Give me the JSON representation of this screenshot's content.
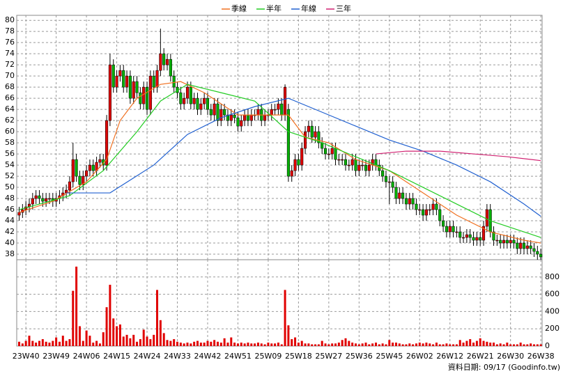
{
  "chart_data": [
    {
      "type": "candlestick",
      "categories": [
        null,
        null,
        "23W40",
        null,
        null,
        null,
        null,
        null,
        null,
        null,
        null,
        "23W49",
        null,
        null,
        null,
        null,
        null,
        null,
        null,
        null,
        "24W06",
        null,
        null,
        null,
        null,
        null,
        null,
        null,
        null,
        "24W15",
        null,
        null,
        null,
        null,
        null,
        null,
        null,
        null,
        "24W24",
        null,
        null,
        null,
        null,
        null,
        null,
        null,
        null,
        "24W33",
        null,
        null,
        null,
        null,
        null,
        null,
        null,
        null,
        "24W42",
        null,
        null,
        null,
        null,
        null,
        null,
        null,
        null,
        "24W51",
        null,
        null,
        null,
        null,
        null,
        null,
        null,
        null,
        "25W09",
        null,
        null,
        null,
        null,
        null,
        null,
        null,
        null,
        "25W18",
        null,
        null,
        null,
        null,
        null,
        null,
        null,
        null,
        "25W27",
        null,
        null,
        null,
        null,
        null,
        null,
        null,
        null,
        "25W36",
        null,
        null,
        null,
        null,
        null,
        null,
        null,
        null,
        "25W45",
        null,
        null,
        null,
        null,
        null,
        null,
        null,
        null,
        "26W02",
        null,
        null,
        null,
        null,
        null,
        null,
        null,
        null,
        "26W12",
        null,
        null,
        null,
        null,
        null,
        null,
        null,
        null,
        "26W21",
        null,
        null,
        null,
        null,
        null,
        null,
        null,
        null,
        "26W30",
        null,
        null,
        null,
        null,
        null,
        null,
        null,
        null,
        "26W38"
      ],
      "open": [
        45,
        45.5,
        46,
        46.5,
        47,
        48,
        48.5,
        48,
        47.5,
        48,
        48,
        47.5,
        48,
        48.5,
        49,
        49.5,
        51,
        55,
        52,
        50.5,
        52,
        53,
        54,
        53,
        54.5,
        55,
        54,
        62,
        72,
        68,
        70,
        71,
        68,
        70,
        66,
        69,
        67,
        65,
        68,
        64,
        70,
        68,
        71,
        74,
        72,
        73,
        70,
        68,
        67,
        65,
        66,
        68,
        65,
        66,
        64,
        65,
        66,
        64,
        63,
        65,
        62,
        64,
        63,
        62,
        63,
        62.5,
        61,
        62,
        63,
        62,
        63,
        63,
        64,
        62,
        63,
        63,
        64,
        64,
        65,
        63,
        64,
        52,
        53,
        55,
        54,
        57,
        60,
        61,
        59,
        60,
        58,
        57,
        56,
        56,
        57,
        55,
        55,
        55,
        54,
        54,
        55,
        53,
        54,
        54,
        53,
        54,
        55,
        54,
        53,
        52,
        51,
        51,
        50,
        48,
        49,
        48,
        47,
        48,
        47,
        46,
        46,
        45,
        46,
        46,
        47,
        46,
        44,
        43,
        42,
        43,
        42,
        42,
        41,
        41,
        41.5,
        41,
        40.5,
        41,
        40.5,
        43,
        46,
        42,
        40.5,
        40.5,
        40,
        40.5,
        40,
        40.5,
        40,
        39,
        40,
        39,
        39.5,
        39,
        38.5,
        38
      ],
      "high": [
        46.5,
        47,
        47.5,
        48,
        49,
        49.5,
        49.5,
        49,
        49,
        49,
        49,
        49,
        49.5,
        50,
        50.5,
        52,
        58,
        56,
        53,
        53,
        54,
        55,
        55,
        55.5,
        56,
        56,
        63,
        74,
        73,
        71,
        72,
        72,
        71,
        71,
        70,
        70,
        68,
        69,
        69,
        71,
        71,
        72,
        78.5,
        75,
        74,
        74,
        71,
        69,
        68,
        67,
        69,
        69,
        67,
        67,
        66,
        67,
        67,
        65,
        66,
        66,
        65,
        65,
        64,
        64,
        64,
        63.5,
        63,
        64,
        64,
        64,
        64,
        65,
        65,
        64,
        64,
        65,
        65,
        66,
        66,
        68.5,
        65,
        54,
        56,
        56,
        58,
        61,
        62,
        62,
        61,
        61,
        59,
        58,
        57,
        58,
        58,
        56,
        56,
        56,
        55,
        56,
        56,
        55,
        55,
        55,
        55,
        56,
        56,
        55,
        54,
        53,
        52,
        52,
        51,
        50,
        50,
        49,
        49,
        49,
        48,
        47,
        47,
        47,
        47,
        48,
        48,
        47,
        45,
        44,
        44,
        44,
        43,
        43,
        42,
        42.5,
        42.5,
        42,
        42,
        42,
        44,
        47,
        47,
        43,
        41.5,
        41.5,
        41.5,
        41.5,
        41.5,
        41.5,
        41,
        41,
        41,
        40.5,
        40.5,
        40,
        39.5,
        39
      ],
      "low": [
        44,
        44.5,
        45,
        45.5,
        46,
        47,
        47,
        46.5,
        46.5,
        47,
        46.5,
        46.5,
        47,
        47.5,
        48,
        48.5,
        50,
        51,
        49.5,
        49.5,
        51,
        52,
        52,
        52,
        53.5,
        53,
        53,
        61,
        67,
        67,
        69,
        67,
        67,
        65,
        65,
        66,
        64,
        64,
        63,
        63,
        67,
        67,
        70,
        71,
        71,
        69,
        67,
        66,
        64,
        64,
        65,
        64,
        64,
        63,
        63,
        64,
        63,
        62,
        62,
        61,
        61,
        62,
        61,
        61,
        61.5,
        60,
        60,
        61,
        61,
        61,
        62,
        62,
        61,
        61,
        62,
        62,
        63,
        63,
        62,
        62,
        51,
        51,
        52,
        53,
        53,
        56,
        59,
        58,
        58,
        57,
        56,
        55,
        55,
        55,
        54,
        54,
        54,
        53,
        53,
        53,
        52,
        52,
        53,
        52,
        52,
        53,
        53,
        52,
        51,
        50,
        47,
        49,
        47,
        47,
        47,
        46,
        46,
        46,
        45,
        45,
        44,
        44,
        45,
        45,
        45,
        43,
        42,
        41,
        41,
        41,
        41,
        40,
        40,
        40,
        40,
        39.5,
        39.5,
        39.5,
        39.5,
        42,
        41,
        39.5,
        39.5,
        39,
        39,
        39,
        39,
        39,
        38,
        38,
        38,
        38,
        38,
        37.5,
        37,
        37
      ],
      "close": [
        45.5,
        46,
        46.5,
        47,
        48,
        48.5,
        48,
        47.5,
        48,
        48,
        47.5,
        48,
        48.5,
        49,
        49.5,
        51,
        55,
        52,
        50.5,
        52,
        53,
        54,
        53,
        54.5,
        55,
        54,
        62,
        72,
        68,
        70,
        71,
        68,
        70,
        66,
        69,
        67,
        65,
        68,
        64,
        70,
        68,
        71,
        74,
        72,
        73,
        70,
        68,
        67,
        65,
        66,
        68,
        65,
        66,
        64,
        65,
        66,
        64,
        63,
        65,
        62,
        64,
        63,
        62,
        63,
        62.5,
        61,
        62,
        63,
        62,
        63,
        63,
        64,
        62,
        63,
        63,
        64,
        64,
        65,
        63,
        68,
        52,
        53,
        55,
        54,
        57,
        60,
        61,
        59,
        60,
        58,
        57,
        56,
        56,
        57,
        55,
        55,
        55,
        54,
        54,
        55,
        53,
        54,
        54,
        53,
        54,
        55,
        54,
        53,
        52,
        51,
        51,
        50,
        48,
        49,
        48,
        47,
        48,
        47,
        46,
        46,
        45,
        46,
        46,
        47,
        46,
        44,
        43,
        42,
        43,
        42,
        42,
        41,
        41,
        41.5,
        41,
        40.5,
        41,
        40.5,
        43,
        46,
        42,
        40.5,
        40.5,
        40,
        40.5,
        40,
        40.5,
        40,
        39,
        40,
        39,
        39.5,
        39,
        38.5,
        38,
        37.5
      ],
      "up_color": "#e00000",
      "down_color": "#00b000",
      "series": [
        {
          "name": "季線",
          "color": "#f07020",
          "x": [
            0,
            10,
            20,
            26,
            30,
            35,
            42,
            48,
            55,
            65,
            75,
            80,
            85,
            92,
            100,
            110,
            120,
            130,
            140,
            150,
            155
          ],
          "values": [
            45.5,
            47.5,
            51,
            55,
            62,
            66,
            68.5,
            69,
            67,
            63,
            63,
            63,
            59,
            58,
            55,
            53,
            49,
            45,
            42,
            40.5,
            40
          ]
        },
        {
          "name": "半年",
          "color": "#22cc22",
          "x": [
            0,
            15,
            25,
            35,
            42,
            50,
            60,
            70,
            80,
            90,
            100,
            110,
            120,
            130,
            140,
            150,
            155
          ],
          "values": [
            46,
            48.5,
            53,
            60,
            65.5,
            68.5,
            67,
            65.5,
            60,
            58,
            55.5,
            53,
            50,
            47,
            44,
            42,
            41
          ]
        },
        {
          "name": "年線",
          "color": "#2060d0",
          "x": [
            14,
            27,
            40,
            50,
            60,
            70,
            80,
            90,
            100,
            110,
            120,
            130,
            140,
            150,
            155
          ],
          "values": [
            49,
            49,
            54,
            59.5,
            62.5,
            64.5,
            66,
            63.5,
            61,
            58.5,
            56.5,
            54,
            51,
            47,
            44.8
          ]
        },
        {
          "name": "三年",
          "color": "#d02070",
          "x": [
            106,
            115,
            125,
            135,
            145,
            155
          ],
          "values": [
            56,
            56.5,
            56.5,
            56,
            55.5,
            54.8
          ]
        }
      ],
      "ylim": [
        37,
        80.9
      ],
      "yticks": [
        38,
        40,
        42,
        44,
        46,
        48,
        50,
        52,
        54,
        56,
        58,
        60,
        62,
        64,
        66,
        68,
        70,
        72,
        74,
        76,
        78,
        80
      ],
      "grid": true
    },
    {
      "type": "bar",
      "color": "#e00000",
      "values": [
        50,
        30,
        60,
        120,
        60,
        40,
        60,
        80,
        50,
        40,
        60,
        100,
        50,
        120,
        60,
        80,
        640,
        920,
        230,
        60,
        180,
        120,
        40,
        60,
        30,
        160,
        450,
        710,
        320,
        230,
        250,
        110,
        130,
        90,
        130,
        50,
        80,
        190,
        110,
        80,
        130,
        650,
        300,
        150,
        70,
        60,
        80,
        50,
        40,
        30,
        40,
        30,
        50,
        60,
        40,
        40,
        60,
        50,
        70,
        50,
        40,
        90,
        40,
        100,
        40,
        30,
        40,
        30,
        40,
        30,
        30,
        40,
        30,
        20,
        40,
        30,
        30,
        40,
        20,
        650,
        240,
        80,
        100,
        40,
        60,
        30,
        30,
        20,
        20,
        20,
        60,
        30,
        20,
        30,
        30,
        40,
        70,
        90,
        60,
        40,
        30,
        20,
        30,
        40,
        20,
        30,
        40,
        20,
        30,
        20,
        70,
        40,
        40,
        30,
        20,
        20,
        30,
        20,
        30,
        40,
        30,
        40,
        30,
        20,
        40,
        20,
        20,
        30,
        20,
        20,
        20,
        70,
        40,
        60,
        80,
        40,
        60,
        90,
        60,
        50,
        40,
        40,
        20,
        30,
        20,
        40,
        20,
        20,
        20,
        40,
        20,
        20,
        30,
        20,
        20,
        20
      ],
      "ylim": [
        0,
        1000
      ],
      "yticks": [
        0,
        200,
        400,
        600,
        800
      ],
      "grid": true
    }
  ],
  "footer": "資料日期: 09/17  (Goodinfo.tw)"
}
